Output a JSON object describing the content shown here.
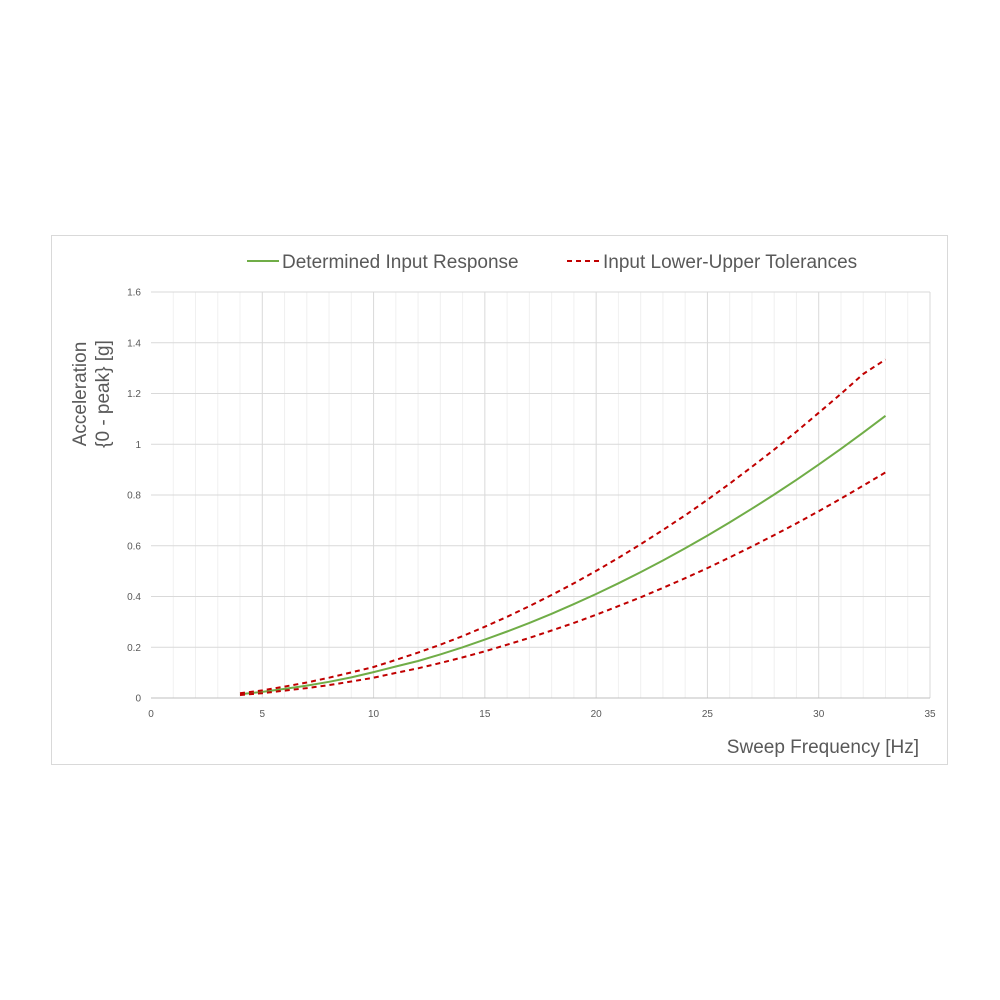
{
  "chart_data": {
    "type": "line",
    "title": "",
    "xlabel": "Sweep Frequency  [Hz]",
    "ylabel_line1": "Acceleration",
    "ylabel_line2": "{0 - peak} [g]",
    "xlim": [
      0,
      35
    ],
    "ylim": [
      0,
      1.6
    ],
    "x_ticks": [
      0,
      5,
      10,
      15,
      20,
      25,
      30,
      35
    ],
    "y_ticks": [
      0,
      0.2,
      0.4,
      0.6,
      0.8,
      1,
      1.2,
      1.4,
      1.6
    ],
    "x_tick_labels": [
      "0",
      "5",
      "10",
      "15",
      "20",
      "25",
      "30",
      "35"
    ],
    "y_tick_labels": [
      "0",
      "0.2",
      "0.4",
      "0.6",
      "0.8",
      "1",
      "1.2",
      "1.4",
      "1.6"
    ],
    "grid": true,
    "legend_position": "top",
    "x": [
      4,
      5,
      6,
      7,
      8,
      9,
      10,
      11,
      12,
      13,
      14,
      15,
      16,
      17,
      18,
      19,
      20,
      21,
      22,
      23,
      24,
      25,
      26,
      27,
      28,
      29,
      30,
      31,
      32,
      33
    ],
    "series": [
      {
        "name": "Determined Input Response",
        "color": "#70ad47",
        "style": "solid",
        "values": [
          0.015,
          0.024,
          0.036,
          0.049,
          0.064,
          0.081,
          0.102,
          0.124,
          0.146,
          0.172,
          0.2,
          0.23,
          0.262,
          0.296,
          0.332,
          0.37,
          0.41,
          0.452,
          0.496,
          0.542,
          0.59,
          0.64,
          0.692,
          0.746,
          0.802,
          0.86,
          0.92,
          0.982,
          1.046,
          1.112
        ]
      },
      {
        "name": "Input Lower-Upper Tolerances",
        "color": "#c00000",
        "style": "dashed",
        "values": [
          0.019,
          0.03,
          0.045,
          0.061,
          0.08,
          0.101,
          0.122,
          0.15,
          0.179,
          0.21,
          0.244,
          0.281,
          0.32,
          0.362,
          0.406,
          0.452,
          0.501,
          0.552,
          0.606,
          0.662,
          0.72,
          0.781,
          0.845,
          0.911,
          0.979,
          1.05,
          1.124,
          1.199,
          1.277,
          1.334
        ]
      },
      {
        "name": "",
        "color": "#c00000",
        "style": "dashed",
        "values": [
          0.012,
          0.019,
          0.029,
          0.039,
          0.051,
          0.065,
          0.08,
          0.099,
          0.117,
          0.138,
          0.16,
          0.184,
          0.21,
          0.237,
          0.266,
          0.296,
          0.328,
          0.362,
          0.397,
          0.434,
          0.472,
          0.512,
          0.554,
          0.597,
          0.642,
          0.688,
          0.736,
          0.786,
          0.837,
          0.889
        ]
      }
    ]
  }
}
